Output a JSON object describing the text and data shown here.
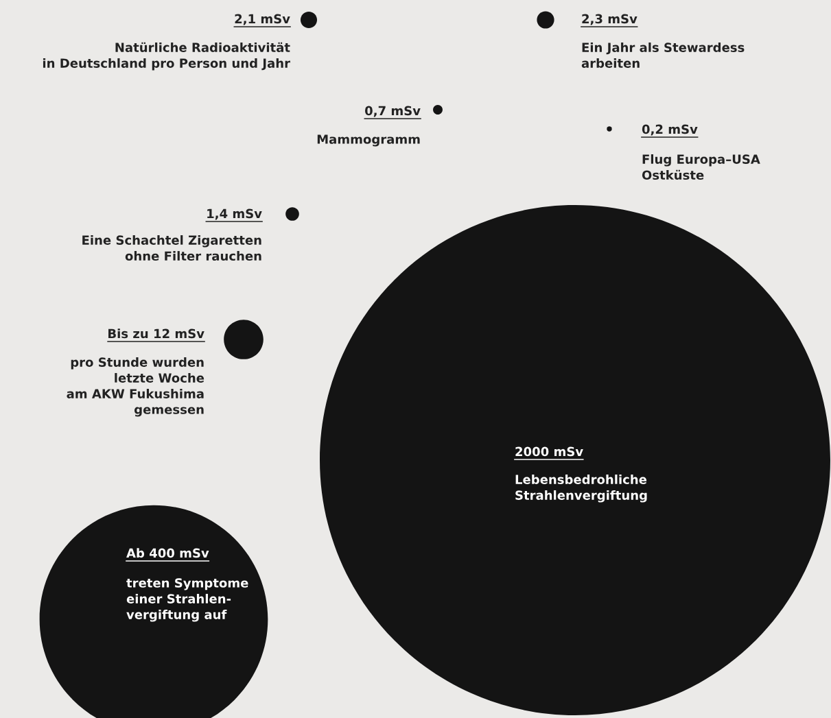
{
  "chart_data": {
    "type": "other",
    "categories": [
      "Natürliche Radioaktivität\nin Deutschland pro Person und Jahr",
      "Ein Jahr als Stewardess\narbeiten",
      "Mammogramm",
      "Flug Europa–USA\nOstküste",
      "Eine Schachtel Zigaretten\nohne Filter rauchen",
      "pro Stunde wurden\nletzte Woche\nam AKW Fukushima\ngemessen",
      "Lebensbedrohliche\nStrahlenvergiftung",
      "treten Symptome\neiner Strahlen-\nvergiftung auf"
    ],
    "values": [
      2.1,
      2.3,
      0.7,
      0.2,
      1.4,
      12,
      2000,
      400
    ],
    "value_labels": [
      "2,1 mSv",
      "2,3 mSv",
      "0,7 mSv",
      "0,2 mSv",
      "1,4 mSv",
      "Bis zu 12 mSv",
      "2000 mSv",
      "Ab 400 mSv"
    ],
    "color": "#141414"
  }
}
